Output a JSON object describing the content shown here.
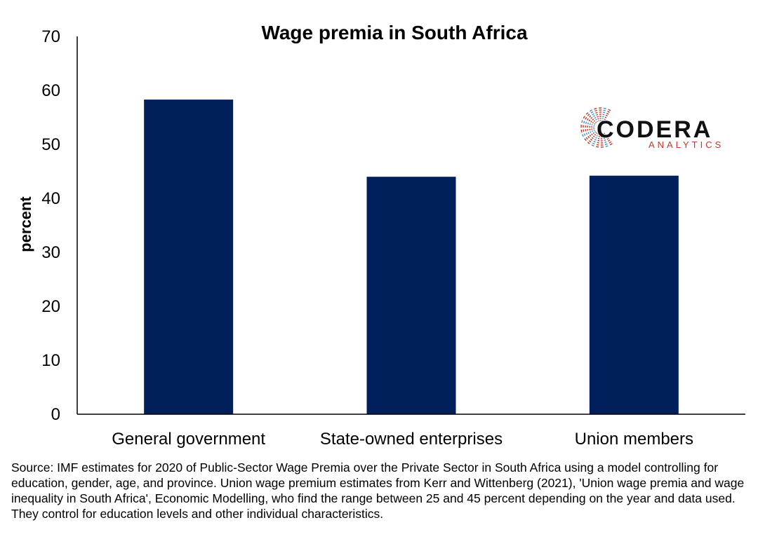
{
  "chart_data": {
    "type": "bar",
    "title": "Wage premia in South Africa",
    "xlabel": "",
    "ylabel": "percent",
    "categories": [
      "General government",
      "State-owned enterprises",
      "Union members"
    ],
    "values": [
      58.3,
      44.0,
      44.2
    ],
    "ylim": [
      0,
      70
    ],
    "yticks": [
      0,
      10,
      20,
      30,
      40,
      50,
      60,
      70
    ],
    "grid": false,
    "legend": "none",
    "bar_color": "#001f5b"
  },
  "logo": {
    "name": "CODERA",
    "tagline": "ANALYTICS",
    "accent_colors": [
      "#c0392b",
      "#4a90c8"
    ]
  },
  "source_note": "Source: IMF estimates for 2020 of Public-Sector Wage Premia over the Private Sector in South Africa using a model controlling for education, gender, age, and province. Union wage premium estimates from Kerr and Wittenberg (2021), 'Union wage premia and wage inequality in South Africa', Economic Modelling, who find the range between 25 and 45 percent depending on the year and data used. They control for education levels and other individual characteristics."
}
